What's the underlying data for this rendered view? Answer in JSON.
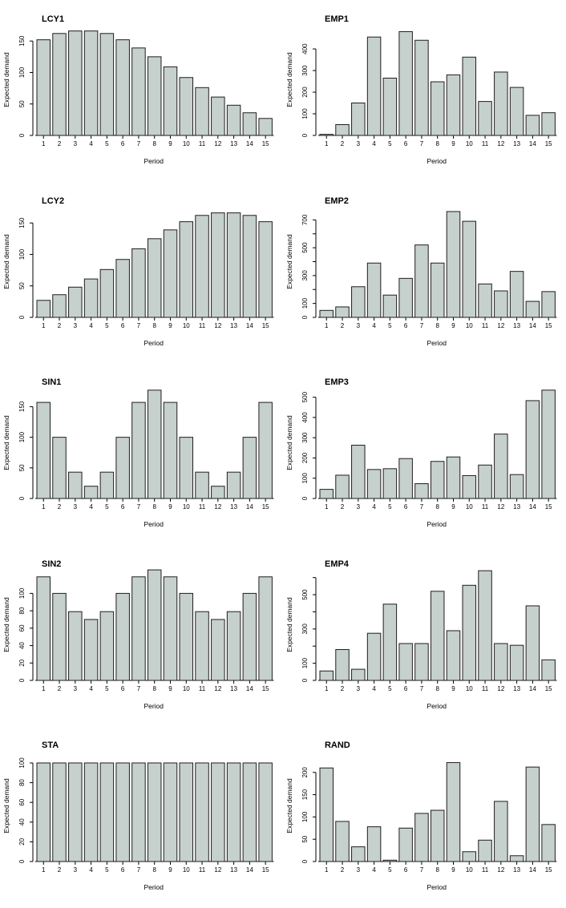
{
  "figure": {
    "ylabel": "Expected demand",
    "xlabel": "Period",
    "periods": [
      "1",
      "2",
      "3",
      "4",
      "5",
      "6",
      "7",
      "8",
      "9",
      "10",
      "11",
      "12",
      "13",
      "14",
      "15"
    ],
    "bar_fill": "#c6d0cd",
    "bar_stroke": "#1f1f1f",
    "axis_color": "#000000",
    "background": "#ffffff"
  },
  "chart_data": [
    {
      "type": "bar",
      "title": "LCY1",
      "categories": [
        "1",
        "2",
        "3",
        "4",
        "5",
        "6",
        "7",
        "8",
        "9",
        "10",
        "11",
        "12",
        "13",
        "14",
        "15"
      ],
      "values": [
        152,
        162,
        166,
        166,
        162,
        152,
        139,
        125,
        109,
        92,
        76,
        61,
        48,
        36,
        27
      ],
      "xlabel": "Period",
      "ylabel": "Expected demand",
      "ylim": [
        0,
        177
      ],
      "yticks": [
        0,
        50,
        100,
        150
      ],
      "ytick_labels": [
        "0",
        "50",
        "100",
        "150"
      ],
      "grid": false,
      "legend": null
    },
    {
      "type": "bar",
      "title": "EMP1",
      "categories": [
        "1",
        "2",
        "3",
        "4",
        "5",
        "6",
        "7",
        "8",
        "9",
        "10",
        "11",
        "12",
        "13",
        "14",
        "15"
      ],
      "values": [
        5,
        50,
        150,
        455,
        265,
        480,
        440,
        248,
        280,
        362,
        157,
        293,
        222,
        93,
        105
      ],
      "xlabel": "Period",
      "ylabel": "Expected demand",
      "ylim": [
        0,
        515
      ],
      "yticks": [
        0,
        100,
        200,
        300,
        400
      ],
      "ytick_labels": [
        "0",
        "100",
        "200",
        "300",
        "400"
      ],
      "grid": false,
      "legend": null
    },
    {
      "type": "bar",
      "title": "LCY2",
      "categories": [
        "1",
        "2",
        "3",
        "4",
        "5",
        "6",
        "7",
        "8",
        "9",
        "10",
        "11",
        "12",
        "13",
        "14",
        "15"
      ],
      "values": [
        27,
        36,
        48,
        61,
        76,
        92,
        109,
        125,
        139,
        152,
        162,
        166,
        166,
        162,
        152
      ],
      "xlabel": "Period",
      "ylabel": "Expected demand",
      "ylim": [
        0,
        177
      ],
      "yticks": [
        0,
        50,
        100,
        150
      ],
      "ytick_labels": [
        "0",
        "50",
        "100",
        "150"
      ],
      "grid": false,
      "legend": null
    },
    {
      "type": "bar",
      "title": "EMP2",
      "categories": [
        "1",
        "2",
        "3",
        "4",
        "5",
        "6",
        "7",
        "8",
        "9",
        "10",
        "11",
        "12",
        "13",
        "14",
        "15"
      ],
      "values": [
        50,
        75,
        220,
        390,
        160,
        280,
        520,
        390,
        760,
        690,
        240,
        190,
        330,
        115,
        185
      ],
      "xlabel": "Period",
      "ylabel": "Expected demand",
      "ylim": [
        0,
        800
      ],
      "yticks": [
        0,
        100,
        200,
        300,
        400,
        500,
        600,
        700
      ],
      "ytick_labels": [
        "0",
        "100",
        "",
        "300",
        "",
        "500",
        "",
        "700"
      ],
      "grid": false,
      "legend": null
    },
    {
      "type": "bar",
      "title": "SIN1",
      "categories": [
        "1",
        "2",
        "3",
        "4",
        "5",
        "6",
        "7",
        "8",
        "9",
        "10",
        "11",
        "12",
        "13",
        "14",
        "15"
      ],
      "values": [
        157,
        100,
        43,
        20,
        43,
        100,
        157,
        177,
        157,
        100,
        43,
        20,
        43,
        100,
        157
      ],
      "xlabel": "Period",
      "ylabel": "Expected demand",
      "ylim": [
        0,
        182
      ],
      "yticks": [
        0,
        50,
        100,
        150
      ],
      "ytick_labels": [
        "0",
        "50",
        "100",
        "150"
      ],
      "grid": false,
      "legend": null
    },
    {
      "type": "bar",
      "title": "EMP3",
      "categories": [
        "1",
        "2",
        "3",
        "4",
        "5",
        "6",
        "7",
        "8",
        "9",
        "10",
        "11",
        "12",
        "13",
        "14",
        "15"
      ],
      "values": [
        45,
        115,
        263,
        143,
        147,
        197,
        73,
        183,
        205,
        113,
        165,
        318,
        118,
        483,
        535
      ],
      "xlabel": "Period",
      "ylabel": "Expected demand",
      "ylim": [
        0,
        550
      ],
      "yticks": [
        0,
        100,
        200,
        300,
        400,
        500
      ],
      "ytick_labels": [
        "0",
        "100",
        "200",
        "300",
        "400",
        "500"
      ],
      "grid": false,
      "legend": null
    },
    {
      "type": "bar",
      "title": "SIN2",
      "categories": [
        "1",
        "2",
        "3",
        "4",
        "5",
        "6",
        "7",
        "8",
        "9",
        "10",
        "11",
        "12",
        "13",
        "14",
        "15"
      ],
      "values": [
        119,
        100,
        79,
        70,
        79,
        100,
        119,
        127,
        119,
        100,
        79,
        70,
        79,
        100,
        119
      ],
      "xlabel": "Period",
      "ylabel": "Expected demand",
      "ylim": [
        0,
        128
      ],
      "yticks": [
        0,
        20,
        40,
        60,
        80,
        100
      ],
      "ytick_labels": [
        "0",
        "20",
        "40",
        "60",
        "80",
        "100"
      ],
      "grid": false,
      "legend": null
    },
    {
      "type": "bar",
      "title": "EMP4",
      "categories": [
        "1",
        "2",
        "3",
        "4",
        "5",
        "6",
        "7",
        "8",
        "9",
        "10",
        "11",
        "12",
        "13",
        "14",
        "15"
      ],
      "values": [
        55,
        180,
        65,
        275,
        445,
        215,
        215,
        520,
        290,
        555,
        640,
        215,
        205,
        435,
        120
      ],
      "xlabel": "Period",
      "ylabel": "Expected demand",
      "ylim": [
        0,
        650
      ],
      "yticks": [
        0,
        100,
        200,
        300,
        400,
        500,
        600
      ],
      "ytick_labels": [
        "0",
        "100",
        "",
        "300",
        "",
        "500",
        ""
      ],
      "grid": false,
      "legend": null
    },
    {
      "type": "bar",
      "title": "STA",
      "categories": [
        "1",
        "2",
        "3",
        "4",
        "5",
        "6",
        "7",
        "8",
        "9",
        "10",
        "11",
        "12",
        "13",
        "14",
        "15"
      ],
      "values": [
        100,
        100,
        100,
        100,
        100,
        100,
        100,
        100,
        100,
        100,
        100,
        100,
        100,
        100,
        100
      ],
      "xlabel": "Period",
      "ylabel": "Expected demand",
      "ylim": [
        0,
        113
      ],
      "yticks": [
        0,
        20,
        40,
        60,
        80,
        100
      ],
      "ytick_labels": [
        "0",
        "20",
        "40",
        "60",
        "80",
        "100"
      ],
      "grid": false,
      "legend": null
    },
    {
      "type": "bar",
      "title": "RAND",
      "categories": [
        "1",
        "2",
        "3",
        "4",
        "5",
        "6",
        "7",
        "8",
        "9",
        "10",
        "11",
        "12",
        "13",
        "14",
        "15"
      ],
      "values": [
        210,
        90,
        33,
        78,
        3,
        75,
        108,
        115,
        222,
        22,
        48,
        135,
        13,
        212,
        83
      ],
      "xlabel": "Period",
      "ylabel": "Expected demand",
      "ylim": [
        0,
        250
      ],
      "yticks": [
        0,
        50,
        100,
        150,
        200
      ],
      "ytick_labels": [
        "0",
        "50",
        "100",
        "150",
        "200"
      ],
      "grid": false,
      "legend": null
    }
  ]
}
